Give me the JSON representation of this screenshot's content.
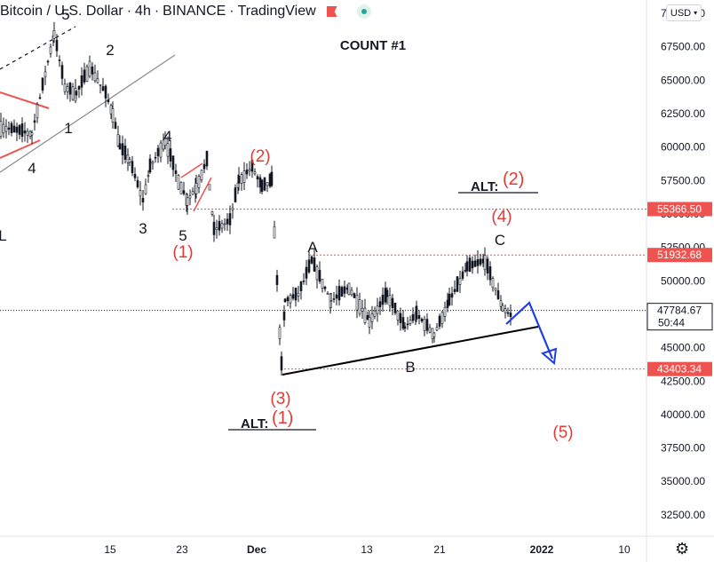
{
  "header": {
    "symbol": "Bitcoin / U.S. Dollar",
    "sep1": "·",
    "timeframe": "4h",
    "sep2": "·",
    "exchange": "BINANCE",
    "sep3": "·",
    "platform": "TradingView"
  },
  "currency_selector": "USD",
  "count_title": "COUNT #1",
  "chart_data": {
    "type": "candlestick",
    "title": "Bitcoin / U.S. Dollar · 4h · BINANCE",
    "y_ticks": [
      32500,
      35000,
      37500,
      40000,
      42500,
      45000,
      47500,
      50000,
      52500,
      55000,
      57500,
      60000,
      62500,
      65000,
      67500,
      70000
    ],
    "y_tick_labels": [
      "32500.00",
      "35000.00",
      "37500.00",
      "40000.00",
      "42500.00",
      "45000.00",
      "47500.00",
      "50000.00",
      "52500.00",
      "55000.00",
      "57500.00",
      "60000.00",
      "62500.00",
      "65000.00",
      "67500.00",
      "70000.00"
    ],
    "x_tick_labels": [
      "15",
      "23",
      "Dec",
      "13",
      "21",
      "2022",
      "10"
    ],
    "ylim": [
      30900,
      71000
    ],
    "price_path": [
      {
        "date": "Nov 2",
        "price": 61500
      },
      {
        "date": "Nov 5",
        "price": 61000
      },
      {
        "date": "Nov 9",
        "price": 68500
      },
      {
        "date": "Nov 10",
        "price": 64500
      },
      {
        "date": "Nov 12",
        "price": 64000
      },
      {
        "date": "Nov 13",
        "price": 66000
      },
      {
        "date": "Nov 14",
        "price": 64000
      },
      {
        "date": "Nov 15",
        "price": 62500
      },
      {
        "date": "Nov 16",
        "price": 60000
      },
      {
        "date": "Nov 17",
        "price": 59000
      },
      {
        "date": "Nov 19",
        "price": 56000
      },
      {
        "date": "Nov 20",
        "price": 58500
      },
      {
        "date": "Nov 21",
        "price": 60500
      },
      {
        "date": "Nov 22",
        "price": 57500
      },
      {
        "date": "Nov 23",
        "price": 56000
      },
      {
        "date": "Nov 24",
        "price": 57000
      },
      {
        "date": "Nov 26",
        "price": 59000
      },
      {
        "date": "Nov 27",
        "price": 53800
      },
      {
        "date": "Nov 29",
        "price": 54500
      },
      {
        "date": "Nov 30",
        "price": 57500
      },
      {
        "date": "Dec 1",
        "price": 58500
      },
      {
        "date": "Dec 2",
        "price": 57000
      },
      {
        "date": "Dec 3",
        "price": 57500
      },
      {
        "date": "Dec 4",
        "price": 43700
      },
      {
        "date": "Dec 4 PM",
        "price": 48500
      },
      {
        "date": "Dec 5",
        "price": 49000
      },
      {
        "date": "Dec 7",
        "price": 51500
      },
      {
        "date": "Dec 9",
        "price": 48500
      },
      {
        "date": "Dec 11",
        "price": 49500
      },
      {
        "date": "Dec 13",
        "price": 47000
      },
      {
        "date": "Dec 15",
        "price": 49000
      },
      {
        "date": "Dec 17",
        "price": 46500
      },
      {
        "date": "Dec 19",
        "price": 47500
      },
      {
        "date": "Dec 21",
        "price": 46000
      },
      {
        "date": "Dec 23",
        "price": 48500
      },
      {
        "date": "Dec 25",
        "price": 51000
      },
      {
        "date": "Dec 27",
        "price": 51500
      },
      {
        "date": "Dec 29",
        "price": 48000
      },
      {
        "date": "Dec 30",
        "price": 47300
      }
    ],
    "horizontal_levels": [
      {
        "price": 55366.5,
        "label": "55366.50",
        "color": "#ef5350"
      },
      {
        "price": 51932.68,
        "label": "51932.68",
        "color": "#ef5350"
      },
      {
        "price": 43403.34,
        "label": "43403.34",
        "color": "#ef5350"
      }
    ],
    "last_price": {
      "price": 47784.67,
      "label": "47784.67",
      "countdown": "50:44"
    },
    "wave_labels": [
      {
        "text": "2",
        "color": "#131722"
      },
      {
        "text": "1",
        "color": "#131722"
      },
      {
        "text": "4",
        "color": "#131722"
      },
      {
        "text": "4",
        "color": "#131722"
      },
      {
        "text": "3",
        "color": "#131722"
      },
      {
        "text": "5",
        "color": "#131722"
      },
      {
        "text": "(1)",
        "color": "#e53935"
      },
      {
        "text": "(2)",
        "color": "#e53935"
      },
      {
        "text": "A",
        "color": "#131722"
      },
      {
        "text": "B",
        "color": "#131722"
      },
      {
        "text": "C",
        "color": "#131722"
      },
      {
        "text": "(4)",
        "color": "#e53935"
      },
      {
        "text": "(3)",
        "color": "#e53935"
      },
      {
        "text": "(5)",
        "color": "#e53935"
      },
      {
        "text": "5",
        "color": "#131722"
      },
      {
        "text": "L",
        "color": "#131722"
      }
    ],
    "alt_labels": [
      {
        "prefix": "ALT:",
        "wave": "(2)"
      },
      {
        "prefix": "ALT:",
        "wave": "(1)"
      }
    ],
    "colors": {
      "up": "#131722",
      "down": "#131722",
      "level": "#ef5350",
      "projection": "#1e3ee8",
      "trendline": "#000000",
      "channel": "#8a8a8a"
    }
  }
}
